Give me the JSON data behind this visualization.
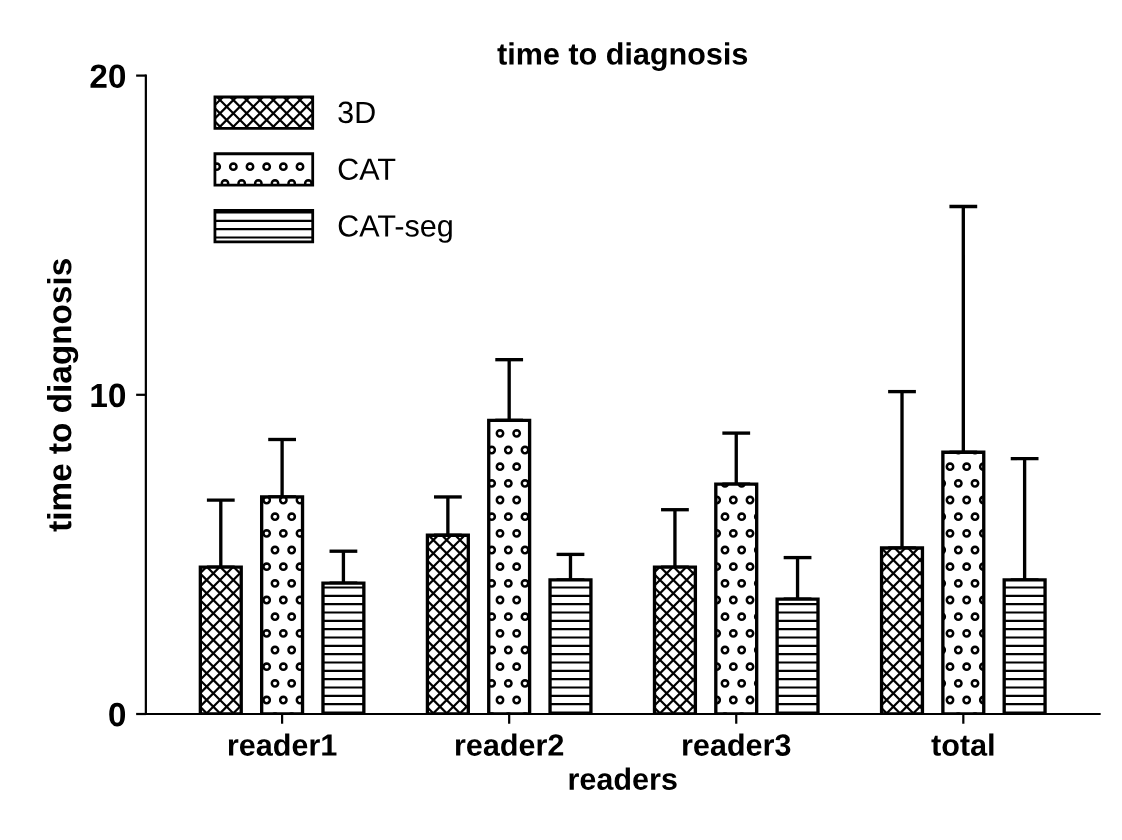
{
  "chart_data": {
    "type": "bar",
    "title": "time to diagnosis",
    "xlabel": "readers",
    "ylabel": "time to diagnosis",
    "categories": [
      "reader1",
      "reader2",
      "reader3",
      "total"
    ],
    "series": [
      {
        "name": "3D",
        "color": "#000000",
        "values": [
          4.6,
          5.6,
          4.6,
          5.2
        ],
        "errors": [
          [
            4.6,
            6.7
          ],
          [
            5.6,
            6.8
          ],
          [
            4.6,
            6.4
          ],
          [
            5.2,
            10.1
          ]
        ]
      },
      {
        "name": "CAT",
        "color": "#000000",
        "values": [
          6.8,
          9.2,
          7.2,
          8.2
        ],
        "errors": [
          [
            6.8,
            8.6
          ],
          [
            9.2,
            11.1
          ],
          [
            7.2,
            8.8
          ],
          [
            8.2,
            15.9
          ]
        ]
      },
      {
        "name": "CAT-seg",
        "color": "#000000",
        "values": [
          4.1,
          4.2,
          3.6,
          4.2
        ],
        "errors": [
          [
            4.1,
            5.1
          ],
          [
            4.2,
            5.0
          ],
          [
            3.6,
            4.9
          ],
          [
            4.2,
            8.0
          ]
        ]
      }
    ],
    "ylim": [
      0,
      20
    ],
    "yticks": [
      0,
      10,
      20
    ],
    "grid": false,
    "legend": "top left"
  }
}
